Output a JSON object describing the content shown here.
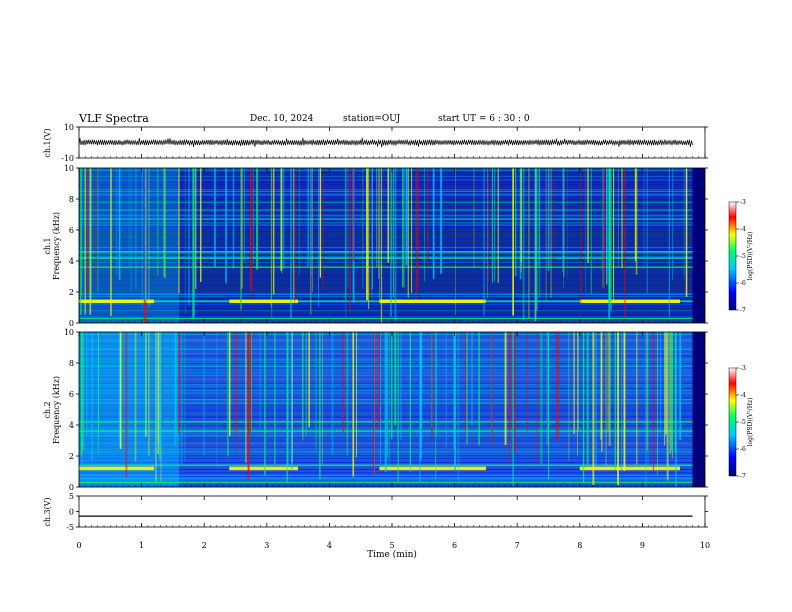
{
  "header": {
    "title": "VLF Spectra",
    "date": "Dec. 10, 2024",
    "station": "station=OUJ",
    "start": "start  UT =  6 : 30 : 0"
  },
  "colors": {
    "colormap": [
      "#00007a",
      "#0000ff",
      "#00c8ff",
      "#00ff66",
      "#ffff00",
      "#ff0000",
      "#ffffff"
    ],
    "trace": "#000000"
  },
  "chart_data": [
    {
      "id": "ch1_waveform",
      "type": "line",
      "ylabel": "ch.1(V)",
      "ylim": [
        -10,
        10
      ],
      "yticks": [
        "10",
        "-10"
      ],
      "xlim": [
        0,
        10
      ],
      "note_values": "waveform amplitude approx within ±2 V over 0–9.8 min"
    },
    {
      "id": "ch1_spectrogram",
      "type": "heatmap",
      "ylabel_top": "ch.1",
      "ylabel": "Frequency (kHz)",
      "ylim": [
        0,
        10
      ],
      "yticks": [
        "0",
        "2",
        "4",
        "6",
        "8",
        "10"
      ],
      "xlim": [
        0,
        10
      ],
      "colorbar": {
        "label": "log(PSD)(V²/Hz)",
        "range": [
          -7,
          -3
        ],
        "ticks": [
          "-3",
          "-4",
          "-5",
          "-6",
          "-7"
        ]
      },
      "persistent_bands_khz": [
        0.3,
        1.4,
        3.6,
        4.2,
        4.6
      ],
      "intermittent_tone_segments": [
        {
          "start_min": 0.0,
          "end_min": 1.2,
          "freq_khz": 1.4
        },
        {
          "start_min": 2.4,
          "end_min": 3.5,
          "freq_khz": 1.4
        },
        {
          "start_min": 4.8,
          "end_min": 6.5,
          "freq_khz": 1.4
        },
        {
          "start_min": 8.0,
          "end_min": 9.6,
          "freq_khz": 1.4
        }
      ]
    },
    {
      "id": "ch2_spectrogram",
      "type": "heatmap",
      "ylabel_top": "ch.2",
      "ylabel": "Frequency (kHz)",
      "ylim": [
        0,
        10
      ],
      "yticks": [
        "0",
        "2",
        "4",
        "6",
        "8",
        "10"
      ],
      "xlim": [
        0,
        10
      ],
      "colorbar": {
        "label": "log(PSD)(V²/Hz)",
        "range": [
          -7,
          -3
        ],
        "ticks": [
          "-3",
          "-4",
          "-5",
          "-6",
          "-7"
        ]
      },
      "persistent_bands_khz": [
        0.3,
        1.4,
        3.6,
        4.2
      ],
      "intermittent_tone_segments": [
        {
          "start_min": 0.0,
          "end_min": 1.2,
          "freq_khz": 1.2
        },
        {
          "start_min": 2.4,
          "end_min": 3.5,
          "freq_khz": 1.2
        },
        {
          "start_min": 4.8,
          "end_min": 6.5,
          "freq_khz": 1.2
        },
        {
          "start_min": 8.0,
          "end_min": 9.6,
          "freq_khz": 1.2
        }
      ]
    },
    {
      "id": "ch3_waveform",
      "type": "line",
      "ylabel": "ch.3(V)",
      "ylim": [
        -5,
        5
      ],
      "yticks": [
        "5",
        "0",
        "-5"
      ],
      "x": [
        0,
        9.8
      ],
      "y": [
        -1.5,
        -1.5
      ]
    }
  ],
  "xaxis": {
    "label": "Time (min)",
    "ticks": [
      "0",
      "1",
      "2",
      "3",
      "4",
      "5",
      "6",
      "7",
      "8",
      "9",
      "10"
    ]
  }
}
